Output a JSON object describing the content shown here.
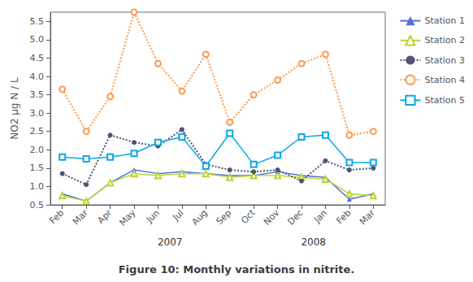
{
  "chart_data": {
    "type": "line",
    "title": "Figure 10: Monthly variations in nitrite.",
    "categories": [
      "Feb",
      "Mar",
      "Apr",
      "May",
      "Jun",
      "Jul",
      "Aug",
      "Sep",
      "Oct",
      "Nov",
      "Dec",
      "Jan",
      "Feb",
      "Mar"
    ],
    "series": [
      {
        "name": "Station 1",
        "values": [
          0.8,
          0.6,
          1.1,
          1.45,
          1.35,
          1.4,
          1.35,
          1.3,
          1.3,
          1.4,
          1.3,
          1.25,
          0.65,
          0.8
        ],
        "marker": "triangle",
        "line_style": "solid"
      },
      {
        "name": "Station 2",
        "values": [
          0.75,
          0.6,
          1.1,
          1.35,
          1.3,
          1.35,
          1.35,
          1.25,
          1.3,
          1.3,
          1.25,
          1.2,
          0.8,
          0.75
        ],
        "marker": "open_triangle",
        "line_style": "solid"
      },
      {
        "name": "Station 3",
        "values": [
          1.35,
          1.05,
          2.4,
          2.2,
          2.1,
          2.55,
          1.6,
          1.45,
          1.4,
          1.45,
          1.15,
          1.7,
          1.45,
          1.5
        ],
        "marker": "circle",
        "line_style": "dotted"
      },
      {
        "name": "Station 4",
        "values": [
          3.65,
          2.5,
          3.45,
          5.75,
          4.35,
          3.6,
          4.6,
          2.75,
          3.5,
          3.9,
          4.35,
          4.6,
          2.4,
          2.5
        ],
        "marker": "open_circle",
        "line_style": "dotted"
      },
      {
        "name": "Station 5",
        "values": [
          1.8,
          1.75,
          1.8,
          1.9,
          2.2,
          2.35,
          1.55,
          2.45,
          1.6,
          1.85,
          2.35,
          2.4,
          1.65,
          1.65
        ],
        "marker": "open_square",
        "line_style": "solid"
      }
    ],
    "ylabel": "NO2 μg N / L",
    "ylim": [
      0.5,
      5.75
    ],
    "yticks": [
      0.5,
      {
        "value": 1,
        "label": "1.0"
      },
      1.5,
      {
        "value": 2,
        "label": "2.0"
      },
      2.5,
      {
        "value": 3,
        "label": "3.0"
      },
      3.5,
      {
        "value": 4,
        "label": "4.0"
      },
      4.5,
      {
        "value": 5,
        "label": "5.0"
      },
      5.5
    ],
    "grid": false,
    "legend": "right",
    "annotations": [
      {
        "text": "2007",
        "x": 4.5
      },
      {
        "text": "2008",
        "x": 10.5
      }
    ]
  }
}
